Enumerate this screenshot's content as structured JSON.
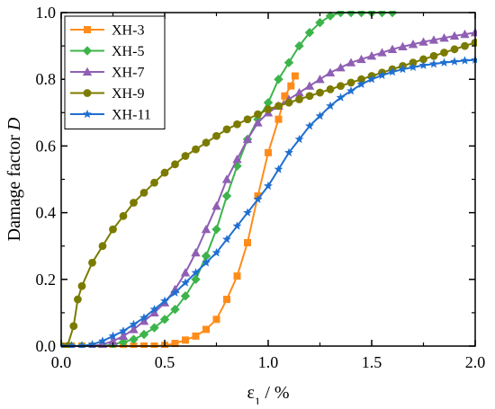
{
  "chart_data": {
    "type": "line",
    "xlabel": "ε",
    "xlabel_sub": "1",
    "xlabel_unit": " / %",
    "ylabel": "Damage factor",
    "ylabel_var": "D",
    "xlim": [
      0.0,
      2.0
    ],
    "ylim": [
      0.0,
      1.0
    ],
    "x_ticks": [
      0.0,
      0.5,
      1.0,
      1.5,
      2.0
    ],
    "x_tick_labels": [
      "0.0",
      "0.5",
      "1.0",
      "1.5",
      "2.0"
    ],
    "y_ticks": [
      0.0,
      0.2,
      0.4,
      0.6,
      0.8,
      1.0
    ],
    "y_tick_labels": [
      "0.0",
      "0.2",
      "0.4",
      "0.6",
      "0.8",
      "1.0"
    ],
    "grid": false,
    "legend_position": "top-left",
    "series": [
      {
        "name": "XH-3",
        "color": "#ff8c1a",
        "marker": "square",
        "x": [
          0.0,
          0.05,
          0.1,
          0.15,
          0.2,
          0.25,
          0.3,
          0.35,
          0.4,
          0.45,
          0.5,
          0.55,
          0.6,
          0.65,
          0.7,
          0.75,
          0.8,
          0.85,
          0.9,
          0.95,
          1.0,
          1.05,
          1.08,
          1.11,
          1.13
        ],
        "y": [
          0.0,
          0.0,
          0.0,
          0.0,
          0.0,
          0.0,
          0.0,
          0.0,
          0.0,
          0.0,
          0.002,
          0.008,
          0.018,
          0.03,
          0.05,
          0.08,
          0.14,
          0.21,
          0.31,
          0.45,
          0.58,
          0.68,
          0.75,
          0.78,
          0.81
        ]
      },
      {
        "name": "XH-5",
        "color": "#3cb44b",
        "marker": "diamond",
        "x": [
          0.0,
          0.05,
          0.1,
          0.15,
          0.2,
          0.25,
          0.3,
          0.35,
          0.4,
          0.45,
          0.5,
          0.55,
          0.6,
          0.65,
          0.7,
          0.75,
          0.8,
          0.85,
          0.9,
          0.95,
          1.0,
          1.05,
          1.1,
          1.15,
          1.2,
          1.25,
          1.3,
          1.35,
          1.4,
          1.45,
          1.5,
          1.55,
          1.6
        ],
        "y": [
          0.0,
          0.0,
          0.0,
          0.0,
          0.0,
          0.005,
          0.012,
          0.02,
          0.035,
          0.055,
          0.08,
          0.11,
          0.15,
          0.2,
          0.27,
          0.35,
          0.45,
          0.54,
          0.62,
          0.68,
          0.73,
          0.8,
          0.85,
          0.9,
          0.94,
          0.97,
          0.99,
          1.0,
          1.0,
          1.0,
          1.0,
          1.0,
          1.0
        ]
      },
      {
        "name": "XH-7",
        "color": "#8f5fb4",
        "marker": "triangle",
        "x": [
          0.0,
          0.05,
          0.1,
          0.15,
          0.2,
          0.25,
          0.3,
          0.35,
          0.4,
          0.45,
          0.5,
          0.55,
          0.6,
          0.65,
          0.7,
          0.75,
          0.8,
          0.85,
          0.9,
          0.95,
          1.0,
          1.05,
          1.1,
          1.15,
          1.2,
          1.25,
          1.3,
          1.35,
          1.4,
          1.45,
          1.5,
          1.55,
          1.6,
          1.65,
          1.7,
          1.75,
          1.8,
          1.85,
          1.9,
          1.95,
          2.0
        ],
        "y": [
          0.0,
          0.0,
          0.0,
          0.0,
          0.005,
          0.015,
          0.03,
          0.05,
          0.075,
          0.1,
          0.13,
          0.17,
          0.22,
          0.28,
          0.35,
          0.42,
          0.5,
          0.56,
          0.62,
          0.67,
          0.7,
          0.72,
          0.74,
          0.76,
          0.78,
          0.8,
          0.82,
          0.835,
          0.85,
          0.86,
          0.87,
          0.88,
          0.89,
          0.898,
          0.905,
          0.912,
          0.918,
          0.924,
          0.93,
          0.935,
          0.94
        ]
      },
      {
        "name": "XH-9",
        "color": "#7b7b00",
        "marker": "circle",
        "x": [
          0.0,
          0.03,
          0.06,
          0.08,
          0.1,
          0.15,
          0.2,
          0.25,
          0.3,
          0.35,
          0.4,
          0.45,
          0.5,
          0.55,
          0.6,
          0.65,
          0.7,
          0.75,
          0.8,
          0.85,
          0.9,
          0.95,
          1.0,
          1.05,
          1.1,
          1.15,
          1.2,
          1.25,
          1.3,
          1.35,
          1.4,
          1.45,
          1.5,
          1.55,
          1.6,
          1.65,
          1.7,
          1.75,
          1.8,
          1.85,
          1.9,
          1.95,
          2.0
        ],
        "y": [
          0.0,
          0.0,
          0.06,
          0.14,
          0.18,
          0.25,
          0.3,
          0.35,
          0.39,
          0.43,
          0.46,
          0.49,
          0.52,
          0.545,
          0.57,
          0.59,
          0.61,
          0.63,
          0.65,
          0.665,
          0.68,
          0.695,
          0.71,
          0.72,
          0.73,
          0.74,
          0.75,
          0.76,
          0.77,
          0.78,
          0.79,
          0.8,
          0.81,
          0.82,
          0.83,
          0.84,
          0.85,
          0.86,
          0.87,
          0.88,
          0.89,
          0.9,
          0.91
        ]
      },
      {
        "name": "XH-11",
        "color": "#1f6fd1",
        "marker": "star",
        "x": [
          0.0,
          0.05,
          0.1,
          0.15,
          0.2,
          0.25,
          0.3,
          0.35,
          0.4,
          0.45,
          0.5,
          0.55,
          0.6,
          0.65,
          0.7,
          0.75,
          0.8,
          0.85,
          0.9,
          0.95,
          1.0,
          1.05,
          1.1,
          1.15,
          1.2,
          1.25,
          1.3,
          1.35,
          1.4,
          1.45,
          1.5,
          1.55,
          1.6,
          1.65,
          1.7,
          1.75,
          1.8,
          1.85,
          1.9,
          1.95,
          2.0
        ],
        "y": [
          0.0,
          0.0,
          0.0,
          0.005,
          0.015,
          0.03,
          0.045,
          0.065,
          0.085,
          0.11,
          0.135,
          0.16,
          0.19,
          0.22,
          0.25,
          0.28,
          0.32,
          0.36,
          0.4,
          0.44,
          0.48,
          0.53,
          0.58,
          0.62,
          0.66,
          0.69,
          0.72,
          0.745,
          0.765,
          0.785,
          0.8,
          0.812,
          0.822,
          0.83,
          0.836,
          0.842,
          0.846,
          0.85,
          0.853,
          0.856,
          0.858
        ]
      }
    ]
  }
}
